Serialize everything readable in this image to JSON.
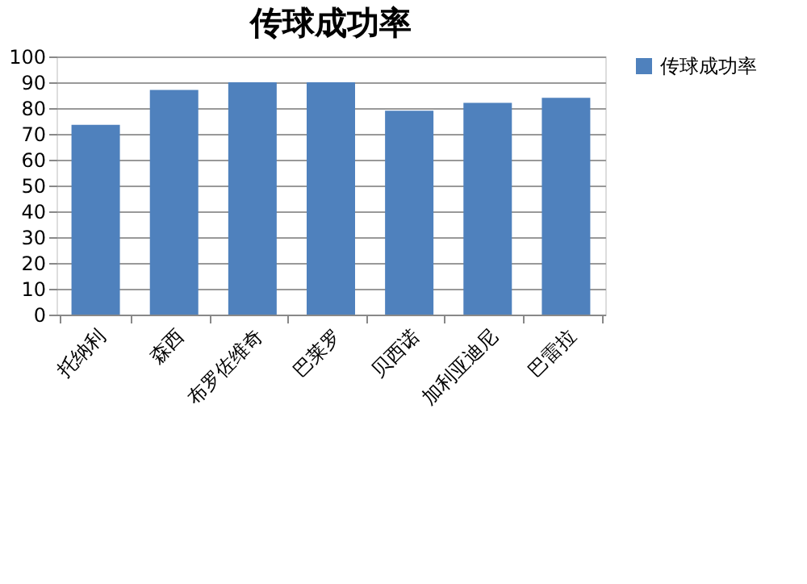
{
  "chart_data": {
    "type": "bar",
    "title": "传球成功率",
    "categories": [
      "托纳利",
      "森西",
      "布罗佐维奇",
      "巴莱罗",
      "贝西诺",
      "加利亚迪尼",
      "巴雷拉"
    ],
    "series": [
      {
        "name": "传球成功率",
        "color": "#4f81bd",
        "values": [
          73.5,
          87,
          90,
          90,
          79,
          82,
          84
        ]
      }
    ],
    "ylim": [
      0,
      100
    ],
    "yticks": [
      0,
      10,
      20,
      30,
      40,
      50,
      60,
      70,
      80,
      90,
      100
    ],
    "grid": "y",
    "legend": "right"
  }
}
